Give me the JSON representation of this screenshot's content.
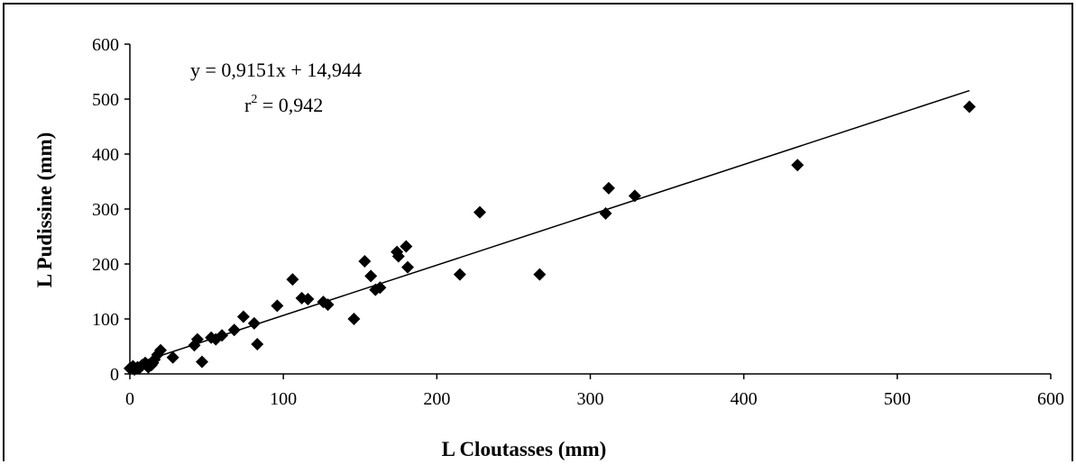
{
  "chart_data": {
    "type": "scatter",
    "xlabel": "L Cloutasses (mm)",
    "ylabel": "L Pudissine (mm)",
    "xlim": [
      0,
      600
    ],
    "ylim": [
      0,
      600
    ],
    "x_ticks": [
      "0",
      "100",
      "200",
      "300",
      "400",
      "500",
      "600"
    ],
    "y_ticks": [
      "0",
      "100",
      "200",
      "300",
      "400",
      "500",
      "600"
    ],
    "grid": false,
    "legend": "none",
    "marker": "diamond",
    "marker_color": "#000000",
    "trendline": {
      "equation": "y = 0,9151x + 14,944",
      "r2_label": "r",
      "r2_sup": "2",
      "r2_value": " = 0,942",
      "slope": 0.9151,
      "intercept": 14.944,
      "x_range": [
        0,
        547
      ]
    },
    "series": [
      {
        "x": [
          0,
          2,
          3,
          5,
          6,
          8,
          10,
          12,
          14,
          15,
          16,
          18,
          20,
          28,
          42,
          44,
          47,
          53,
          56,
          60,
          68,
          74,
          81,
          83,
          96,
          106,
          112,
          116,
          126,
          129,
          146,
          153,
          157,
          160,
          163,
          174,
          175,
          180,
          181,
          215,
          228,
          267,
          310,
          312,
          329,
          435,
          547
        ],
        "y": [
          10,
          14,
          8,
          12,
          10,
          16,
          20,
          12,
          16,
          20,
          26,
          35,
          43,
          30,
          52,
          63,
          22,
          66,
          63,
          70,
          80,
          104,
          92,
          54,
          124,
          172,
          138,
          136,
          131,
          126,
          100,
          205,
          178,
          153,
          157,
          222,
          214,
          232,
          194,
          181,
          294,
          181,
          292,
          338,
          324,
          380,
          486
        ]
      }
    ]
  }
}
